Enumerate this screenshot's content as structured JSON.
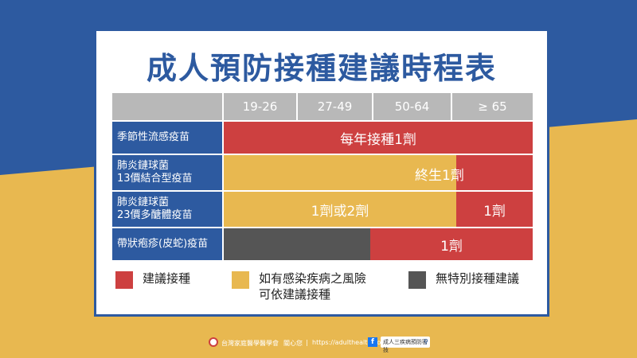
{
  "title": "成人預防接種建議時程表",
  "age_headers": [
    "19-26",
    "27-49",
    "50-64",
    "≥ 65"
  ],
  "rows": [
    {
      "label_lines": [
        "季節性流感疫苗"
      ],
      "segments": [
        {
          "text": "每年接種1劑"
        }
      ]
    },
    {
      "label_lines": [
        "肺炎鏈球菌",
        "13價結合型疫苗"
      ],
      "segments": [
        {
          "text": "終生1劑"
        }
      ]
    },
    {
      "label_lines": [
        "肺炎鏈球菌",
        "23價多醣體疫苗"
      ],
      "segments": [
        {
          "text": "1劑或2劑"
        },
        {
          "text": "1劑"
        }
      ]
    },
    {
      "label_lines": [
        "帶狀疱疹(皮蛇)疫苗"
      ],
      "segments": [
        {
          "text": ""
        },
        {
          "text": "1劑"
        }
      ]
    }
  ],
  "legend": [
    {
      "color": "#cd4040",
      "lines": [
        "建議接種"
      ]
    },
    {
      "color": "#e8b850",
      "lines": [
        "如有感染疾病之風險",
        "可依建議接種"
      ]
    },
    {
      "color": "#555555",
      "lines": [
        "無特別接種建議"
      ]
    }
  ],
  "footer": {
    "org": "台灣家庭醫學醫學會",
    "tagline": "關心您",
    "url": "https://adulthealth.com.tw",
    "search": "成人三疾病預防密技",
    "fb": "f"
  },
  "colors": {
    "blue": "#2d5aa0",
    "red": "#cd4040",
    "yellow": "#e8b850",
    "dark": "#555555",
    "grey": "#b8b8b8"
  }
}
